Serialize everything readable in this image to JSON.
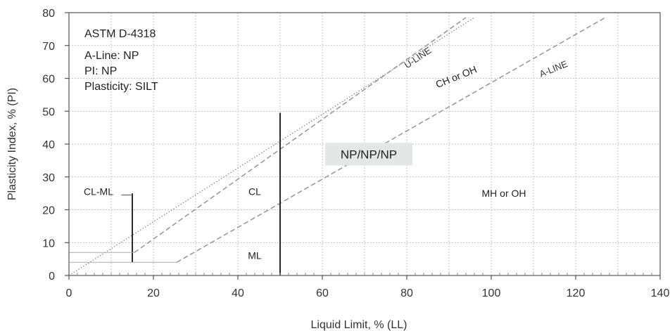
{
  "chart_data": {
    "type": "scatter",
    "standard": "ASTM D-4318",
    "info_lines": [
      "A-Line: NP",
      "PI: NP",
      "Plasticity: SILT"
    ],
    "xlabel": "Liquid Limit, % (LL)",
    "ylabel": "Plasticity Index, % (PI)",
    "xlim": [
      0,
      140
    ],
    "ylim": [
      0,
      80
    ],
    "x_ticks": [
      0,
      20,
      40,
      60,
      80,
      100,
      120,
      140
    ],
    "y_ticks": [
      0,
      10,
      20,
      30,
      40,
      50,
      60,
      70,
      80
    ],
    "grid": true,
    "reference_lines": [
      {
        "name": "U-LINE",
        "points": [
          [
            0,
            0
          ],
          [
            96,
            78.5
          ]
        ],
        "style": "dotted"
      },
      {
        "name": "A-LINE",
        "points": [
          [
            25.5,
            4
          ],
          [
            127,
            78.5
          ]
        ],
        "style": "dashed"
      },
      {
        "name": "",
        "points": [
          [
            15.5,
            7
          ],
          [
            94,
            78.5
          ]
        ],
        "style": "dashed"
      },
      {
        "name": "",
        "points": [
          [
            50,
            0
          ],
          [
            50,
            49.5
          ]
        ],
        "style": "solid"
      },
      {
        "name": "",
        "points": [
          [
            15,
            4
          ],
          [
            15,
            25
          ]
        ],
        "style": "solid"
      },
      {
        "name": "",
        "points": [
          [
            0,
            4
          ],
          [
            25.5,
            4
          ]
        ],
        "style": "thin"
      },
      {
        "name": "",
        "points": [
          [
            0,
            7
          ],
          [
            15.5,
            7
          ]
        ],
        "style": "thin"
      }
    ],
    "region_labels": [
      {
        "text": "CL-ML",
        "x": 7,
        "y": 24.5
      },
      {
        "text": "CL",
        "x": 44,
        "y": 24.5
      },
      {
        "text": "ML",
        "x": 44,
        "y": 5
      },
      {
        "text": "MH or OH",
        "x": 103,
        "y": 24
      },
      {
        "text": "CH or OH",
        "x": 92,
        "y": 59.5
      }
    ],
    "line_labels": [
      {
        "text": "U-LINE",
        "x": 83,
        "y": 65.5
      },
      {
        "text": "A-LINE",
        "x": 115,
        "y": 62
      }
    ],
    "result_label": "NP/NP/NP",
    "result_position": {
      "x": 71,
      "y": 36.5
    }
  }
}
